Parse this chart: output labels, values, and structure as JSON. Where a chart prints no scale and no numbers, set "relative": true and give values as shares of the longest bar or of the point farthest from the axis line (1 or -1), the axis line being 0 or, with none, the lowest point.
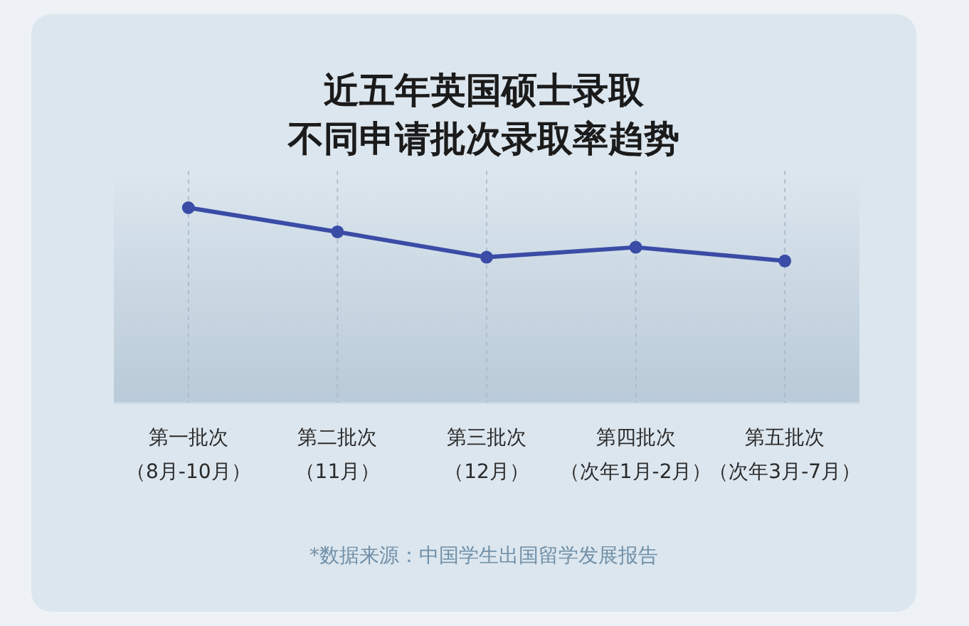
{
  "chart_data": {
    "type": "line",
    "title": "近五年英国硕士录取不同申请批次录取率趋势",
    "categories": [
      "第一批次（8月-10月）",
      "第二批次（11月）",
      "第三批次（12月）",
      "第四批次（次年1月-2月）",
      "第五批次（次年3月-7月）"
    ],
    "series": [
      {
        "color": "#3a4ca6",
        "values": [
          1,
          0.876,
          0.746,
          0.797,
          0.727
        ]
      }
    ],
    "relative": true,
    "marker": "circle",
    "line_style": "solid",
    "grid": "x",
    "annotations": [
      "*数据来源：中国学生出国留学发展报告"
    ]
  }
}
